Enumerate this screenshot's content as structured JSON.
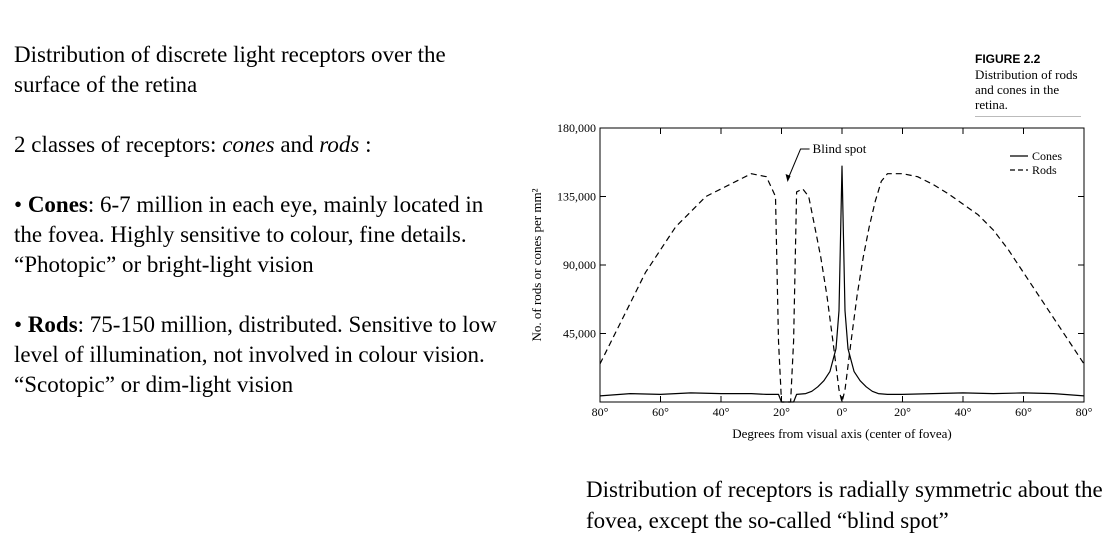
{
  "slide": {
    "heading": "Distribution of discrete light receptors over the surface of the retina",
    "classes_prefix": "2 classes of receptors: ",
    "classes_cones": "cones",
    "classes_and": " and ",
    "classes_rods": "rods",
    "classes_suffix": " :",
    "cones_bullet": "• ",
    "cones_title": "Cones",
    "cones_text": ": 6-7 million in each eye, mainly located in the fovea. Highly sensitive to colour, fine details.",
    "cones_vision": "“Photopic” or bright-light vision",
    "rods_bullet": "• ",
    "rods_title": "Rods",
    "rods_text": ": 75-150 million, distributed. Sensitive to low level of illumination, not involved in colour vision.",
    "rods_vision": "“Scotopic” or dim-light vision",
    "bottom_caption": "Distribution of receptors is radially symmetric about the fovea, except the so-called “blind spot”"
  },
  "figure": {
    "number": "FIGURE 2.2",
    "caption": "Distribution of rods and cones in the retina."
  },
  "chart_data": {
    "type": "line",
    "xlabel": "Degrees from visual axis (center of fovea)",
    "ylabel": "No. of rods or cones per mm²",
    "xlim": [
      -80,
      80
    ],
    "ylim": [
      0,
      180000
    ],
    "x_ticks": [
      -80,
      -60,
      -40,
      -20,
      0,
      20,
      40,
      60,
      80
    ],
    "x_tick_labels": [
      "80°",
      "60°",
      "40°",
      "20°",
      "0°",
      "20°",
      "40°",
      "60°",
      "80°"
    ],
    "y_ticks": [
      45000,
      90000,
      135000,
      180000
    ],
    "y_tick_labels": [
      "45,000",
      "90,000",
      "135,000",
      "180,000"
    ],
    "legend": {
      "position": "top-right",
      "entries": [
        "Cones",
        "Rods"
      ]
    },
    "annotation": {
      "text": "Blind spot",
      "x": -18
    },
    "series": [
      {
        "name": "Cones",
        "style": "solid",
        "x": [
          -80,
          -70,
          -60,
          -50,
          -40,
          -30,
          -25,
          -21,
          -20,
          -16,
          -15,
          -12,
          -10,
          -8,
          -6,
          -4,
          -2,
          -1,
          0,
          1,
          2,
          4,
          6,
          8,
          10,
          12,
          15,
          20,
          30,
          40,
          50,
          60,
          70,
          80
        ],
        "y": [
          4000,
          5500,
          5000,
          6000,
          5500,
          5500,
          5000,
          5000,
          0,
          0,
          5000,
          5500,
          7000,
          10000,
          14000,
          20000,
          35000,
          60000,
          155000,
          60000,
          35000,
          20000,
          14000,
          10000,
          7000,
          5500,
          5000,
          5000,
          5500,
          6000,
          5500,
          6000,
          5500,
          4000
        ]
      },
      {
        "name": "Rods",
        "style": "dashed",
        "x": [
          -80,
          -75,
          -70,
          -65,
          -60,
          -55,
          -50,
          -45,
          -40,
          -35,
          -30,
          -25,
          -22,
          -21,
          -20,
          -17,
          -16,
          -15,
          -13,
          -11,
          -9,
          -7,
          -5,
          -3,
          -1,
          0,
          1,
          3,
          5,
          7,
          9,
          11,
          13,
          15,
          20,
          25,
          30,
          35,
          40,
          45,
          50,
          55,
          60,
          65,
          70,
          75,
          80
        ],
        "y": [
          25000,
          45000,
          65000,
          85000,
          100000,
          115000,
          125000,
          135000,
          140000,
          145000,
          150000,
          148000,
          135000,
          40000,
          0,
          0,
          40000,
          138000,
          140000,
          135000,
          115000,
          95000,
          70000,
          40000,
          8000,
          0,
          8000,
          40000,
          70000,
          95000,
          115000,
          132000,
          145000,
          150000,
          150000,
          148000,
          143000,
          137000,
          130000,
          123000,
          113000,
          100000,
          85000,
          70000,
          55000,
          40000,
          25000
        ]
      }
    ]
  }
}
